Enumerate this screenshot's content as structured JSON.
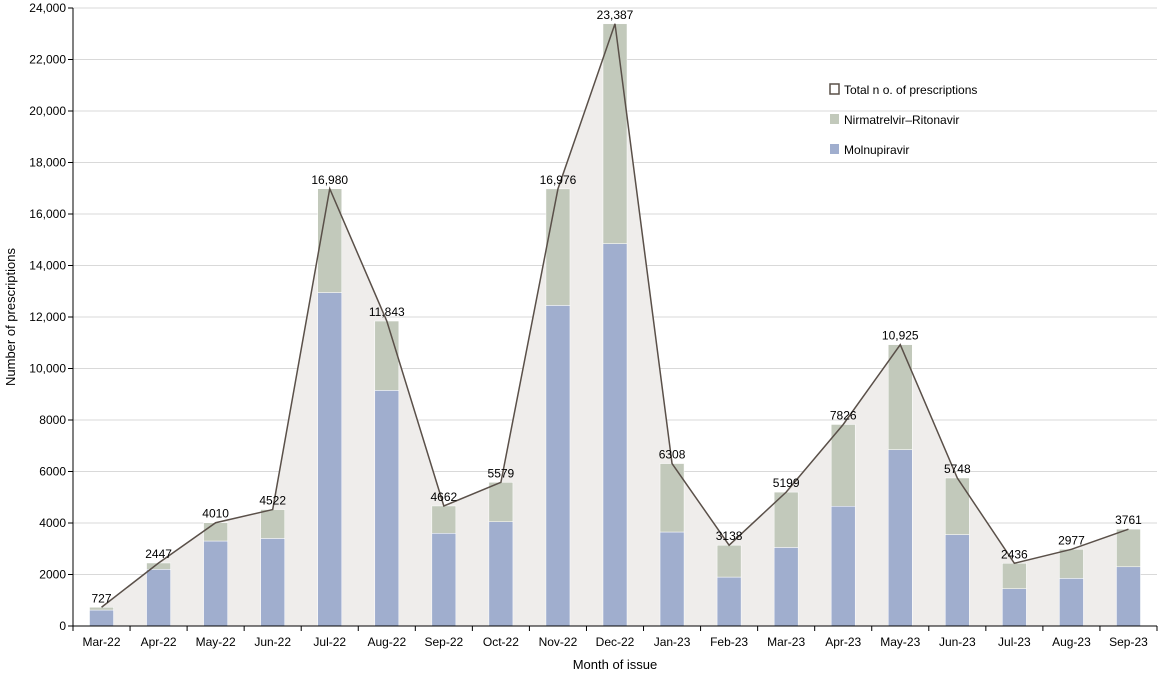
{
  "chart_data": {
    "type": "bar",
    "stacked": true,
    "xlabel": "Month of issue",
    "ylabel": "Number of prescriptions",
    "ylim": [
      0,
      24000
    ],
    "yticks": [
      0,
      2000,
      4000,
      6000,
      8000,
      10000,
      12000,
      14000,
      16000,
      18000,
      20000,
      22000,
      24000
    ],
    "ytick_labels": [
      "0",
      "2000",
      "4000",
      "6000",
      "8000",
      "10,000",
      "12,000",
      "14,000",
      "16,000",
      "18,000",
      "20,000",
      "22,000",
      "24,000"
    ],
    "categories": [
      "Mar-22",
      "Apr-22",
      "May-22",
      "Jun-22",
      "Jul-22",
      "Aug-22",
      "Sep-22",
      "Oct-22",
      "Nov-22",
      "Dec-22",
      "Jan-23",
      "Feb-23",
      "Mar-23",
      "Apr-23",
      "May-23",
      "Jun-23",
      "Jul-23",
      "Aug-23",
      "Sep-23"
    ],
    "series": [
      {
        "name": "Molnupiravir",
        "color": "#a0aece",
        "values": [
          620,
          2200,
          3300,
          3400,
          12950,
          9150,
          3600,
          4050,
          12450,
          14850,
          3650,
          1900,
          3050,
          4650,
          6850,
          3550,
          1450,
          1850,
          2300
        ]
      },
      {
        "name": "Nirmatrelvir–Ritonavir",
        "color": "#c2c9bb",
        "values": [
          107,
          247,
          710,
          1122,
          4030,
          2693,
          1062,
          1529,
          4526,
          8537,
          2658,
          1238,
          2149,
          3176,
          4075,
          2198,
          986,
          1127,
          1461
        ]
      }
    ],
    "total": {
      "name": "Total n o. of prescriptions",
      "values": [
        727,
        2447,
        4010,
        4522,
        16980,
        11843,
        4662,
        5579,
        16976,
        23387,
        6308,
        3138,
        5199,
        7826,
        10925,
        5748,
        2436,
        2977,
        3761
      ],
      "labels": [
        "727",
        "2447",
        "4010",
        "4522",
        "16,980",
        "11,843",
        "4662",
        "5579",
        "16,976",
        "23,387",
        "6308",
        "3138",
        "5199",
        "7826",
        "10,925",
        "5748",
        "2436",
        "2977",
        "3761"
      ],
      "line_color": "#5a5049",
      "fill_color": "#efedeb"
    },
    "legend": {
      "placement": "top-right",
      "order": [
        "Total n o. of prescriptions",
        "Nirmatrelvir–Ritonavir",
        "Molnupiravir"
      ]
    },
    "grid": {
      "y": true,
      "color": "#d9d9d9"
    }
  }
}
